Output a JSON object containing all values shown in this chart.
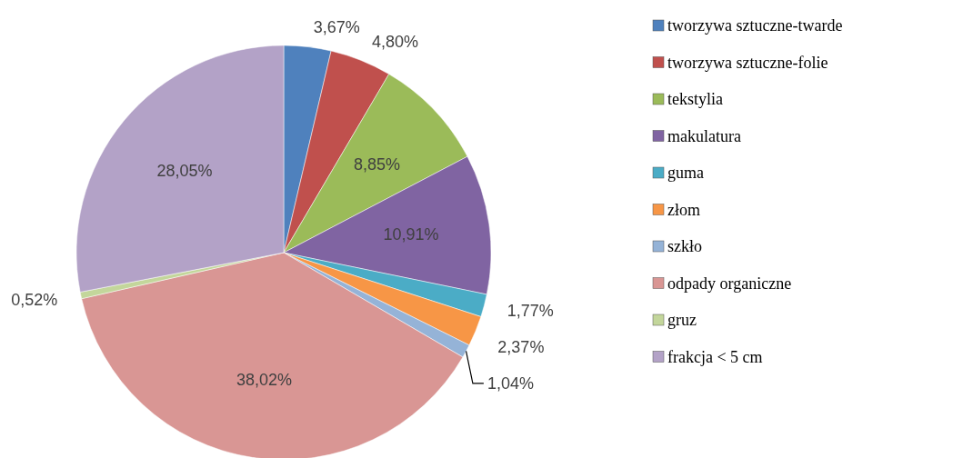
{
  "chart_data": {
    "type": "pie",
    "categories": [
      "tworzywa sztuczne-twarde",
      "tworzywa sztuczne-folie",
      "tekstylia",
      "makulatura",
      "guma",
      "złom",
      "szkło",
      "odpady organiczne",
      "gruz",
      "frakcja < 5 cm"
    ],
    "values": [
      3.67,
      4.8,
      8.85,
      10.91,
      1.77,
      2.37,
      1.04,
      38.02,
      0.52,
      28.05
    ],
    "colors": [
      "#4f81bd",
      "#c0504d",
      "#9bbb59",
      "#8064a2",
      "#4bacc6",
      "#f79646",
      "#95b3d7",
      "#d99694",
      "#c3d69b",
      "#b3a2c7"
    ],
    "value_labels": [
      "3,67%",
      "4,80%",
      "8,85%",
      "10,91%",
      "1,77%",
      "2,37%",
      "1,04%",
      "38,02%",
      "0,52%",
      "28,05%"
    ],
    "legend": "right"
  }
}
